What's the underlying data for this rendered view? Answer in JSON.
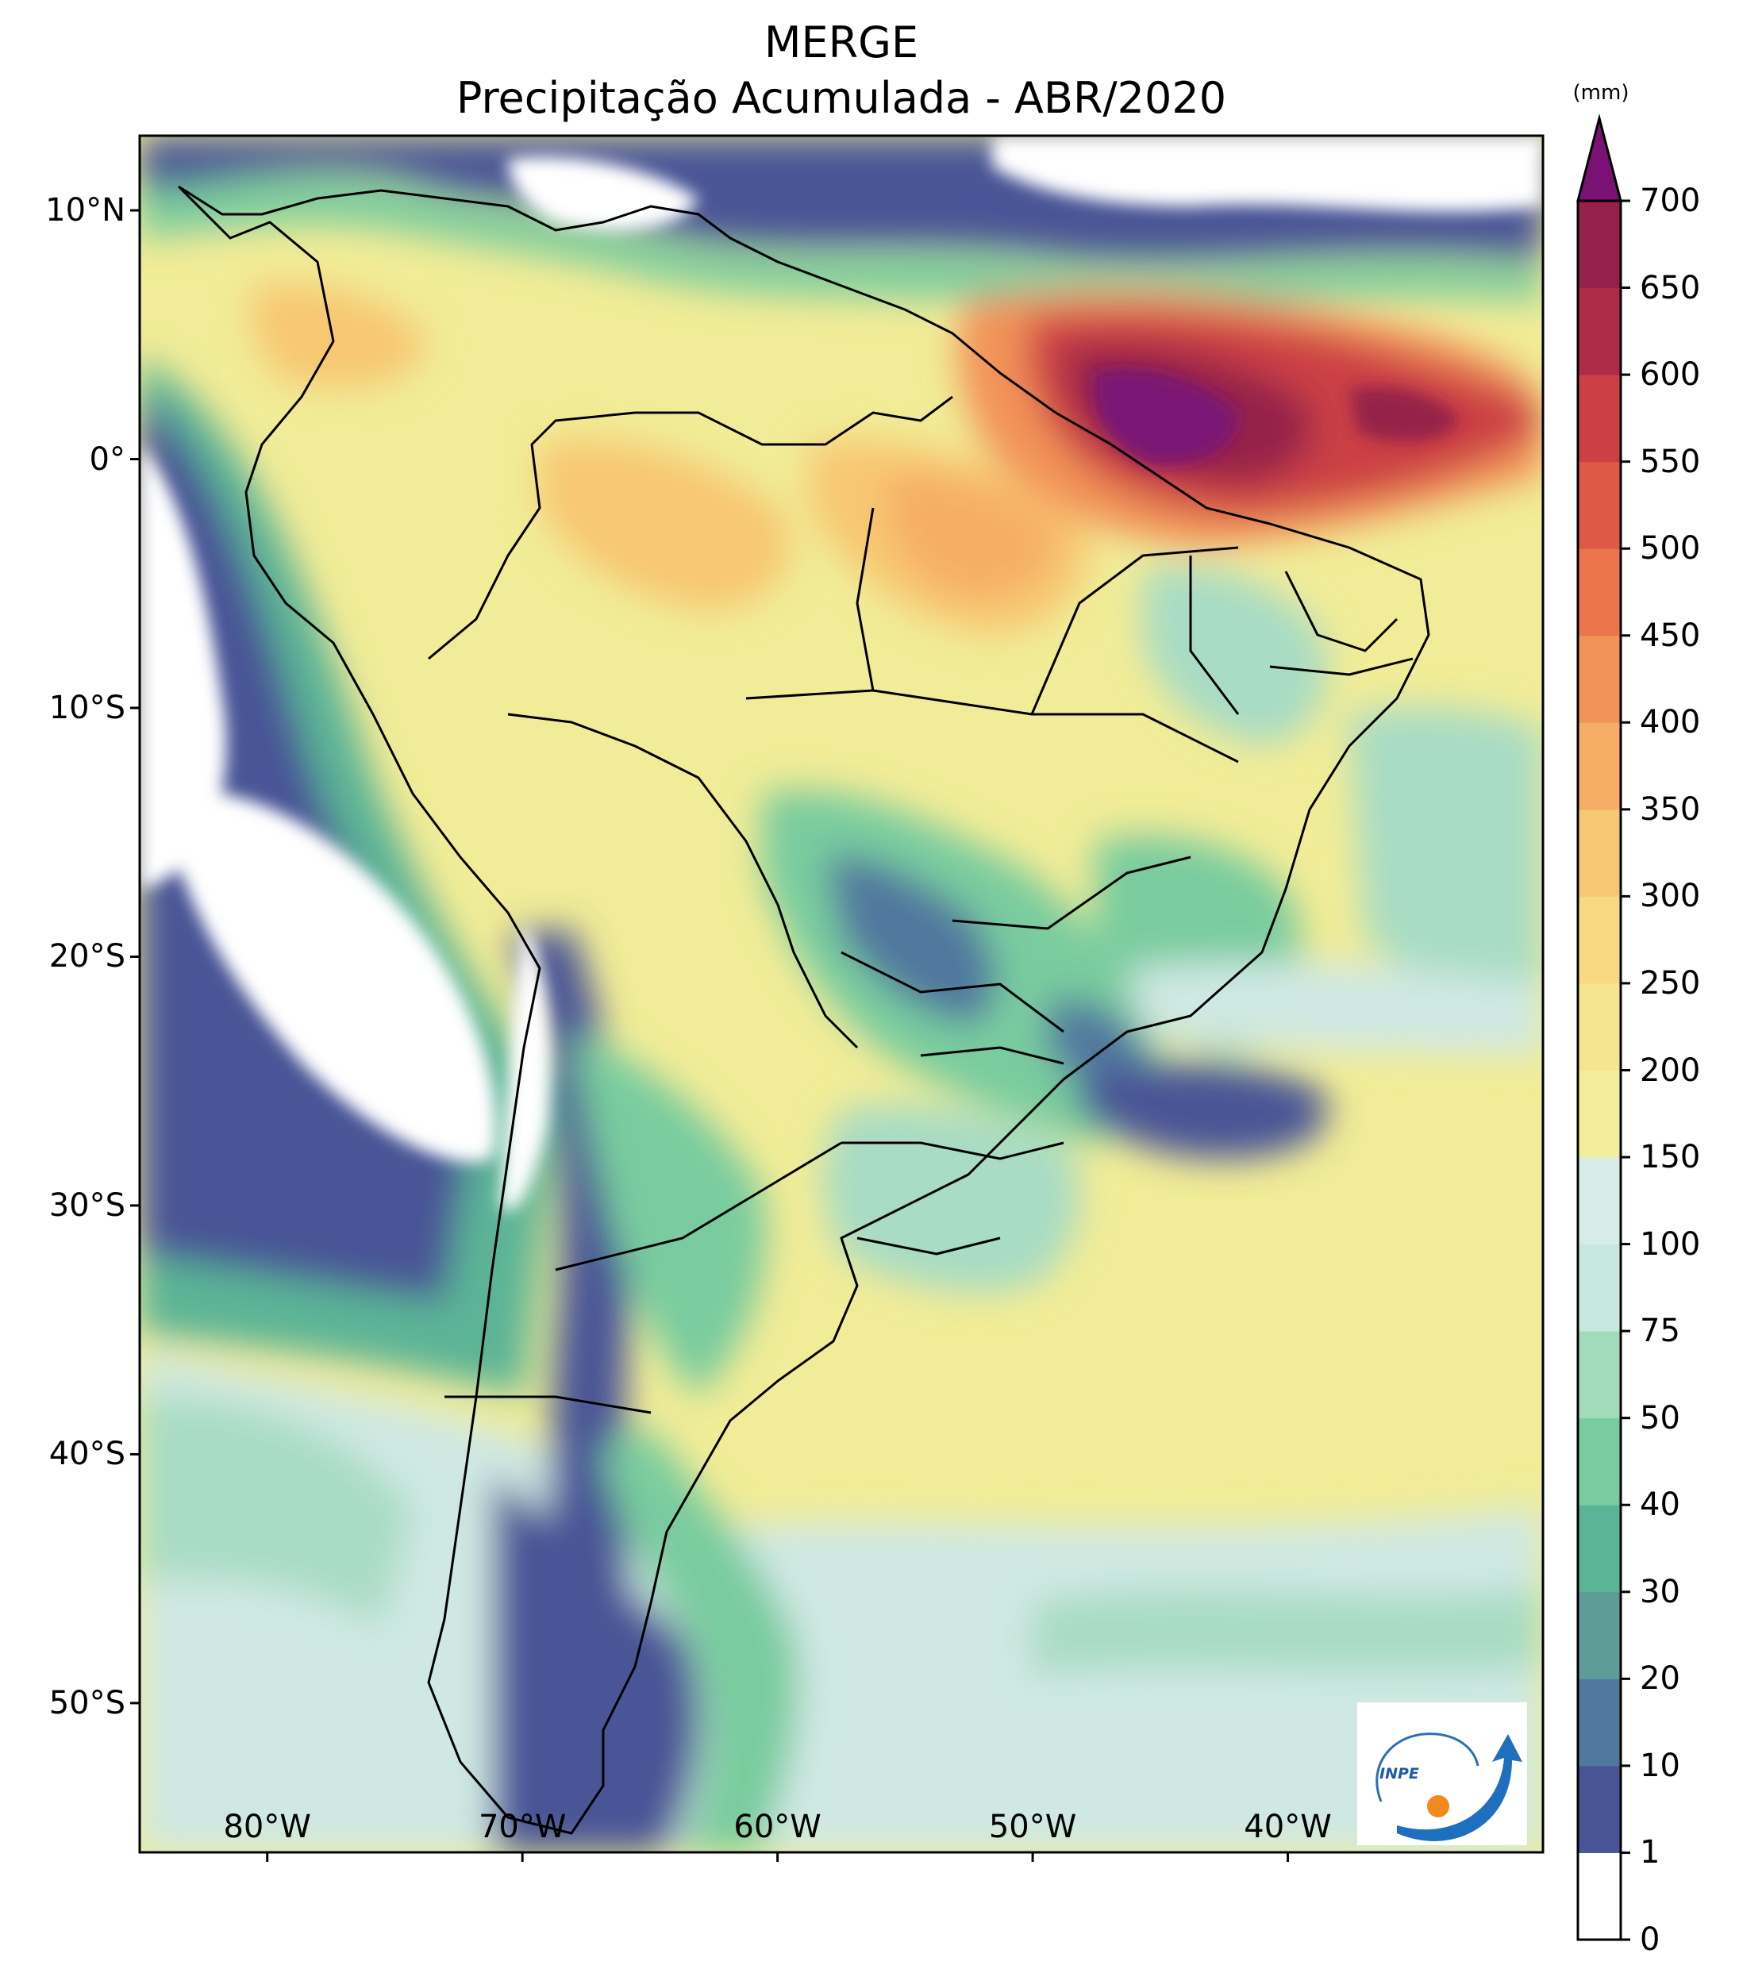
{
  "title": {
    "line1": "MERGE",
    "line2": "Precipitação Acumulada - ABR/2020"
  },
  "axes": {
    "lat_labels": [
      "10°N",
      "0°",
      "10°S",
      "20°S",
      "30°S",
      "40°S",
      "50°S"
    ],
    "lat_values": [
      10,
      0,
      -10,
      -20,
      -30,
      -40,
      -50
    ],
    "lon_labels": [
      "80°W",
      "70°W",
      "60°W",
      "50°W",
      "40°W"
    ],
    "lon_values": [
      -80,
      -70,
      -60,
      -50,
      -40
    ],
    "lon_range": [
      -85,
      -30
    ],
    "lat_range": [
      -56,
      13
    ]
  },
  "colorbar": {
    "unit": "(mm)",
    "levels": [
      "0",
      "1",
      "10",
      "20",
      "30",
      "40",
      "50",
      "75",
      "100",
      "150",
      "200",
      "250",
      "300",
      "350",
      "400",
      "450",
      "500",
      "550",
      "600",
      "650",
      "700"
    ],
    "colors": [
      "#ffffff",
      "#4a5596",
      "#51789e",
      "#5e9c98",
      "#5cb496",
      "#79cc9f",
      "#a2dbba",
      "#c6e8de",
      "#d8ecea",
      "#f2ee9b",
      "#f6e590",
      "#f8d982",
      "#f8c772",
      "#f6ad66",
      "#f29358",
      "#ec754d",
      "#e05846",
      "#cc3f44",
      "#b02b47",
      "#952049"
    ],
    "extend_color": "#7a1275"
  },
  "logo": {
    "text": "INPE",
    "name": "inpe-logo"
  },
  "colors": {
    "deep_purple": "#7a1275",
    "dark_red": "#b52a4a",
    "orange": "#f29358",
    "yellow": "#f3ea92",
    "light_teal": "#cfe8e3",
    "teal": "#79cc9f",
    "navy": "#4a5596",
    "white": "#ffffff"
  }
}
